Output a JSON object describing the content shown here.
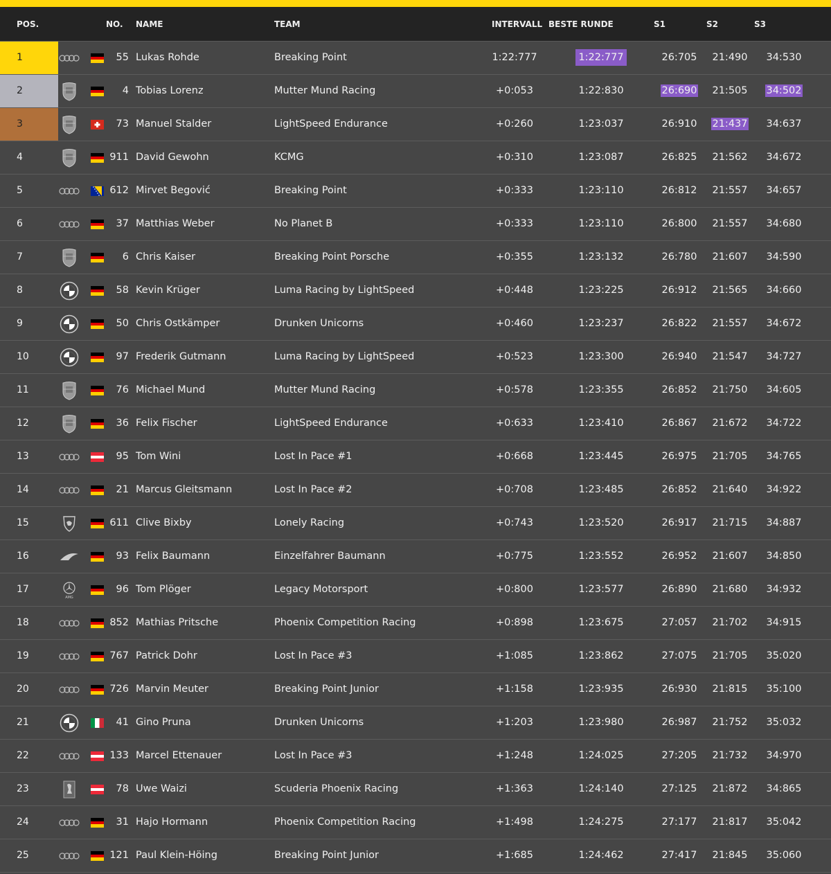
{
  "header": {
    "pos": "POS.",
    "no": "NO.",
    "name": "NAME",
    "team": "TEAM",
    "interval": "INTERVALL",
    "best_lap": "BESTE RUNDE",
    "s1": "S1",
    "s2": "S2",
    "s3": "S3"
  },
  "colors": {
    "accent": "#ffd60a",
    "p1": "#ffd60a",
    "p2": "#b4b4bc",
    "p3": "#b0703a",
    "fastest": "#8a5cc8"
  },
  "rows": [
    {
      "pos": "1",
      "brand": "audi",
      "flag": "de",
      "no": "55",
      "name": "Lukas Rohde",
      "team": "Breaking Point",
      "interval": "1:22:777",
      "best": "1:22:777",
      "s1": "26:705",
      "s2": "21:490",
      "s3": "34:530",
      "fastest": [
        "best"
      ]
    },
    {
      "pos": "2",
      "brand": "porsche",
      "flag": "de",
      "no": "4",
      "name": "Tobias Lorenz",
      "team": "Mutter Mund Racing",
      "interval": "+0:053",
      "best": "1:22:830",
      "s1": "26:690",
      "s2": "21:505",
      "s3": "34:502",
      "fastest": [
        "s1",
        "s3"
      ]
    },
    {
      "pos": "3",
      "brand": "porsche",
      "flag": "ch",
      "no": "73",
      "name": "Manuel Stalder",
      "team": "LightSpeed Endurance",
      "interval": "+0:260",
      "best": "1:23:037",
      "s1": "26:910",
      "s2": "21:437",
      "s3": "34:637",
      "fastest": [
        "s2"
      ]
    },
    {
      "pos": "4",
      "brand": "porsche",
      "flag": "de",
      "no": "911",
      "name": "David Gewohn",
      "team": "KCMG",
      "interval": "+0:310",
      "best": "1:23:087",
      "s1": "26:825",
      "s2": "21:562",
      "s3": "34:672"
    },
    {
      "pos": "5",
      "brand": "audi",
      "flag": "ba",
      "no": "612",
      "name": "Mirvet Begović",
      "team": "Breaking Point",
      "interval": "+0:333",
      "best": "1:23:110",
      "s1": "26:812",
      "s2": "21:557",
      "s3": "34:657"
    },
    {
      "pos": "6",
      "brand": "audi",
      "flag": "de",
      "no": "37",
      "name": "Matthias Weber",
      "team": "No Planet B",
      "interval": "+0:333",
      "best": "1:23:110",
      "s1": "26:800",
      "s2": "21:557",
      "s3": "34:680"
    },
    {
      "pos": "7",
      "brand": "porsche",
      "flag": "de",
      "no": "6",
      "name": "Chris Kaiser",
      "team": "Breaking Point Porsche",
      "interval": "+0:355",
      "best": "1:23:132",
      "s1": "26:780",
      "s2": "21:607",
      "s3": "34:590"
    },
    {
      "pos": "8",
      "brand": "bmw",
      "flag": "de",
      "no": "58",
      "name": "Kevin Krüger",
      "team": "Luma Racing by LightSpeed",
      "interval": "+0:448",
      "best": "1:23:225",
      "s1": "26:912",
      "s2": "21:565",
      "s3": "34:660"
    },
    {
      "pos": "9",
      "brand": "bmw",
      "flag": "de",
      "no": "50",
      "name": "Chris Ostkämper",
      "team": "Drunken Unicorns",
      "interval": "+0:460",
      "best": "1:23:237",
      "s1": "26:822",
      "s2": "21:557",
      "s3": "34:672"
    },
    {
      "pos": "10",
      "brand": "bmw",
      "flag": "de",
      "no": "97",
      "name": "Frederik Gutmann",
      "team": "Luma Racing by LightSpeed",
      "interval": "+0:523",
      "best": "1:23:300",
      "s1": "26:940",
      "s2": "21:547",
      "s3": "34:727"
    },
    {
      "pos": "11",
      "brand": "porsche",
      "flag": "de",
      "no": "76",
      "name": "Michael Mund",
      "team": "Mutter Mund Racing",
      "interval": "+0:578",
      "best": "1:23:355",
      "s1": "26:852",
      "s2": "21:750",
      "s3": "34:605"
    },
    {
      "pos": "12",
      "brand": "porsche",
      "flag": "de",
      "no": "36",
      "name": "Felix Fischer",
      "team": "LightSpeed Endurance",
      "interval": "+0:633",
      "best": "1:23:410",
      "s1": "26:867",
      "s2": "21:672",
      "s3": "34:722"
    },
    {
      "pos": "13",
      "brand": "audi",
      "flag": "at",
      "no": "95",
      "name": "Tom Wini",
      "team": "Lost In Pace #1",
      "interval": "+0:668",
      "best": "1:23:445",
      "s1": "26:975",
      "s2": "21:705",
      "s3": "34:765"
    },
    {
      "pos": "14",
      "brand": "audi",
      "flag": "de",
      "no": "21",
      "name": "Marcus Gleitsmann",
      "team": "Lost In Pace #2",
      "interval": "+0:708",
      "best": "1:23:485",
      "s1": "26:852",
      "s2": "21:640",
      "s3": "34:922"
    },
    {
      "pos": "15",
      "brand": "lamborghini",
      "flag": "de",
      "no": "611",
      "name": "Clive Bixby",
      "team": "Lonely Racing",
      "interval": "+0:743",
      "best": "1:23:520",
      "s1": "26:917",
      "s2": "21:715",
      "s3": "34:887"
    },
    {
      "pos": "16",
      "brand": "mclaren",
      "flag": "de",
      "no": "93",
      "name": "Felix Baumann",
      "team": "Einzelfahrer Baumann",
      "interval": "+0:775",
      "best": "1:23:552",
      "s1": "26:952",
      "s2": "21:607",
      "s3": "34:850"
    },
    {
      "pos": "17",
      "brand": "mercedes",
      "flag": "de",
      "no": "96",
      "name": "Tom Plöger",
      "team": "Legacy Motorsport",
      "interval": "+0:800",
      "best": "1:23:577",
      "s1": "26:890",
      "s2": "21:680",
      "s3": "34:932"
    },
    {
      "pos": "18",
      "brand": "audi",
      "flag": "de",
      "no": "852",
      "name": "Mathias Pritsche",
      "team": "Phoenix Competition Racing",
      "interval": "+0:898",
      "best": "1:23:675",
      "s1": "27:057",
      "s2": "21:702",
      "s3": "34:915"
    },
    {
      "pos": "19",
      "brand": "audi",
      "flag": "de",
      "no": "767",
      "name": "Patrick Dohr",
      "team": "Lost In Pace #3",
      "interval": "+1:085",
      "best": "1:23:862",
      "s1": "27:075",
      "s2": "21:705",
      "s3": "35:020"
    },
    {
      "pos": "20",
      "brand": "audi",
      "flag": "de",
      "no": "726",
      "name": "Marvin Meuter",
      "team": "Breaking Point Junior",
      "interval": "+1:158",
      "best": "1:23:935",
      "s1": "26:930",
      "s2": "21:815",
      "s3": "35:100"
    },
    {
      "pos": "21",
      "brand": "bmw",
      "flag": "it",
      "no": "41",
      "name": "Gino Pruna",
      "team": "Drunken Unicorns",
      "interval": "+1:203",
      "best": "1:23:980",
      "s1": "26:987",
      "s2": "21:752",
      "s3": "35:032"
    },
    {
      "pos": "22",
      "brand": "audi",
      "flag": "at",
      "no": "133",
      "name": "Marcel Ettenauer",
      "team": "Lost In Pace #3",
      "interval": "+1:248",
      "best": "1:24:025",
      "s1": "27:205",
      "s2": "21:732",
      "s3": "34:970"
    },
    {
      "pos": "23",
      "brand": "ferrari",
      "flag": "at",
      "no": "78",
      "name": "Uwe Waizi",
      "team": "Scuderia Phoenix Racing",
      "interval": "+1:363",
      "best": "1:24:140",
      "s1": "27:125",
      "s2": "21:872",
      "s3": "34:865"
    },
    {
      "pos": "24",
      "brand": "audi",
      "flag": "de",
      "no": "31",
      "name": "Hajo Hormann",
      "team": "Phoenix Competition Racing",
      "interval": "+1:498",
      "best": "1:24:275",
      "s1": "27:177",
      "s2": "21:817",
      "s3": "35:042"
    },
    {
      "pos": "25",
      "brand": "audi",
      "flag": "de",
      "no": "121",
      "name": "Paul Klein-Höing",
      "team": "Breaking Point Junior",
      "interval": "+1:685",
      "best": "1:24:462",
      "s1": "27:417",
      "s2": "21:845",
      "s3": "35:060"
    }
  ]
}
